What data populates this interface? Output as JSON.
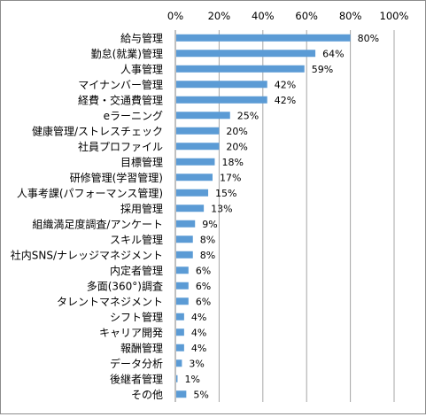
{
  "chart_data": {
    "type": "bar",
    "orientation": "horizontal",
    "title": "",
    "xlabel": "",
    "ylabel": "",
    "xlim": [
      0,
      100
    ],
    "x_ticks": [
      0,
      20,
      40,
      60,
      80,
      100
    ],
    "tick_suffix": "%",
    "x_axis_position": "top",
    "grid": true,
    "legend": "none",
    "bar_color": "#5B9BD5",
    "categories": [
      "給与管理",
      "勤怠(就業)管理",
      "人事管理",
      "マイナンバー管理",
      "経費・交通費管理",
      "eラーニング",
      "健康管理/ストレスチェック",
      "社員プロファイル",
      "目標管理",
      "研修管理(学習管理)",
      "人事考課(パフォーマンス管理)",
      "採用管理",
      "組織満足度調査/アンケート",
      "スキル管理",
      "社内SNS/ナレッジマネジメント",
      "内定者管理",
      "多面(360°)調査",
      "タレントマネジメント",
      "シフト管理",
      "キャリア開発",
      "報酬管理",
      "データ分析",
      "後継者管理",
      "その他"
    ],
    "values": [
      80,
      64,
      59,
      42,
      42,
      25,
      20,
      20,
      18,
      17,
      15,
      13,
      9,
      8,
      8,
      6,
      6,
      6,
      4,
      4,
      4,
      3,
      1,
      5
    ],
    "data_label_suffix": "%"
  }
}
